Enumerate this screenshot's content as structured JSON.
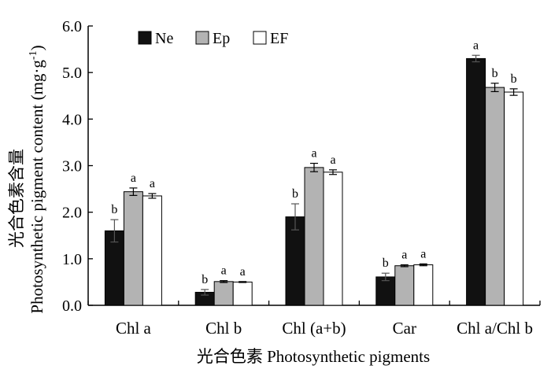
{
  "chart_data": {
    "type": "bar",
    "xlabel": "光合色素 Photosynthetic pigments",
    "ylabel_cn": "光合色素含量",
    "ylabel_en": "Photosynthetic pigment content (mg·g",
    "ylabel_sup": "-1",
    "ylabel_end": ")",
    "ylim": [
      0,
      6
    ],
    "yticks": [
      "0.0",
      "1.0",
      "2.0",
      "3.0",
      "4.0",
      "5.0",
      "6.0"
    ],
    "categories": [
      "Chl a",
      "Chl b",
      "Chl (a+b)",
      "Car",
      "Chl a/Chl b"
    ],
    "legend_position": "top-left",
    "series": [
      {
        "name": "Ne",
        "color": "#111111",
        "values": [
          1.6,
          0.28,
          1.9,
          0.61,
          5.3
        ],
        "errors": [
          0.24,
          0.06,
          0.28,
          0.08,
          0.07
        ],
        "labels": [
          "b",
          "b",
          "b",
          "b",
          "a"
        ]
      },
      {
        "name": "Ep",
        "color": "#b3b3b3",
        "values": [
          2.44,
          0.51,
          2.96,
          0.85,
          4.68
        ],
        "errors": [
          0.08,
          0.02,
          0.09,
          0.02,
          0.09
        ],
        "labels": [
          "a",
          "a",
          "a",
          "a",
          "b"
        ]
      },
      {
        "name": "EF",
        "color": "#ffffff",
        "values": [
          2.35,
          0.5,
          2.86,
          0.87,
          4.58
        ],
        "errors": [
          0.05,
          0.01,
          0.05,
          0.02,
          0.07
        ],
        "labels": [
          "a",
          "a",
          "a",
          "a",
          "b"
        ]
      }
    ]
  }
}
